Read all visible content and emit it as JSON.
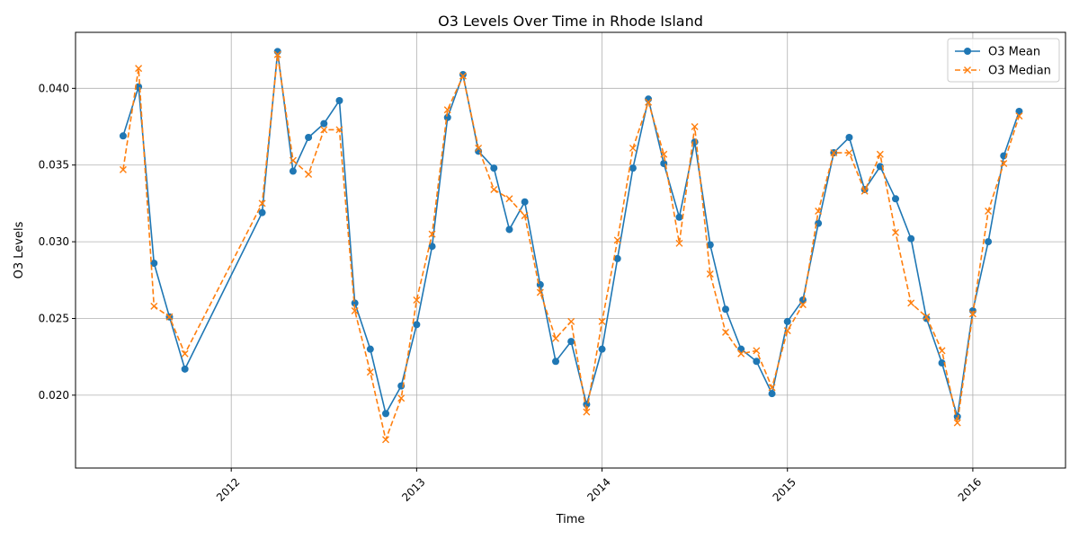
{
  "chart_data": {
    "type": "line",
    "title": "O3 Levels Over Time in Rhode Island",
    "xlabel": "Time",
    "ylabel": "O3 Levels",
    "xlim": [
      2011.16,
      2016.5
    ],
    "ylim": [
      0.01525,
      0.04365
    ],
    "grid": true,
    "legend_position": "top-right",
    "x_ticks": [
      {
        "label": "2012",
        "value": 2012.0
      },
      {
        "label": "2013",
        "value": 2013.0
      },
      {
        "label": "2014",
        "value": 2014.0
      },
      {
        "label": "2015",
        "value": 2015.0
      },
      {
        "label": "2016",
        "value": 2016.0
      }
    ],
    "y_ticks": [
      {
        "label": "0.020",
        "value": 0.02
      },
      {
        "label": "0.025",
        "value": 0.025
      },
      {
        "label": "0.030",
        "value": 0.03
      },
      {
        "label": "0.035",
        "value": 0.035
      },
      {
        "label": "0.040",
        "value": 0.04
      }
    ],
    "x": [
      2011.4167,
      2011.5,
      2011.5833,
      2011.6667,
      2011.75,
      2012.1667,
      2012.25,
      2012.3333,
      2012.4167,
      2012.5,
      2012.5833,
      2012.6667,
      2012.75,
      2012.8333,
      2012.9167,
      2013.0,
      2013.0833,
      2013.1667,
      2013.25,
      2013.3333,
      2013.4167,
      2013.5,
      2013.5833,
      2013.6667,
      2013.75,
      2013.8333,
      2013.9167,
      2014.0,
      2014.0833,
      2014.1667,
      2014.25,
      2014.3333,
      2014.4167,
      2014.5,
      2014.5833,
      2014.6667,
      2014.75,
      2014.8333,
      2014.9167,
      2015.0,
      2015.0833,
      2015.1667,
      2015.25,
      2015.3333,
      2015.4167,
      2015.5,
      2015.5833,
      2015.6667,
      2015.75,
      2015.8333,
      2015.9167,
      2016.0,
      2016.0833,
      2016.1667,
      2016.25
    ],
    "series": [
      {
        "name": "O3 Mean",
        "color": "#1f77b4",
        "style": "solid",
        "marker": "circle",
        "values": [
          0.0369,
          0.0401,
          0.0286,
          0.0251,
          0.0217,
          0.0319,
          0.0424,
          0.0346,
          0.0368,
          0.0377,
          0.0392,
          0.026,
          0.023,
          0.0188,
          0.0206,
          0.0246,
          0.0297,
          0.0381,
          0.0409,
          0.0359,
          0.0348,
          0.0308,
          0.0326,
          0.0272,
          0.0222,
          0.0235,
          0.0194,
          0.023,
          0.0289,
          0.0348,
          0.0393,
          0.0351,
          0.0316,
          0.0365,
          0.0298,
          0.0256,
          0.023,
          0.0222,
          0.0201,
          0.0248,
          0.0262,
          0.0312,
          0.0358,
          0.0368,
          0.0334,
          0.0349,
          0.0328,
          0.0302,
          0.025,
          0.0221,
          0.0186,
          0.0255,
          0.03,
          0.0356,
          0.0385
        ]
      },
      {
        "name": "O3 Median",
        "color": "#ff7f0e",
        "style": "dashed",
        "marker": "x",
        "values": [
          0.0347,
          0.0413,
          0.0258,
          0.0251,
          0.0227,
          0.0325,
          0.0422,
          0.0353,
          0.0344,
          0.0373,
          0.0373,
          0.0255,
          0.0215,
          0.0171,
          0.0198,
          0.0262,
          0.0305,
          0.0386,
          0.0408,
          0.0361,
          0.0334,
          0.0328,
          0.0317,
          0.0267,
          0.0237,
          0.0248,
          0.0189,
          0.0248,
          0.0301,
          0.0361,
          0.0391,
          0.0357,
          0.0299,
          0.0375,
          0.0279,
          0.0241,
          0.0227,
          0.0229,
          0.0205,
          0.0242,
          0.0259,
          0.032,
          0.0358,
          0.0358,
          0.0333,
          0.0357,
          0.0306,
          0.026,
          0.0251,
          0.0229,
          0.0182,
          0.0253,
          0.032,
          0.0351,
          0.0382
        ]
      }
    ]
  }
}
